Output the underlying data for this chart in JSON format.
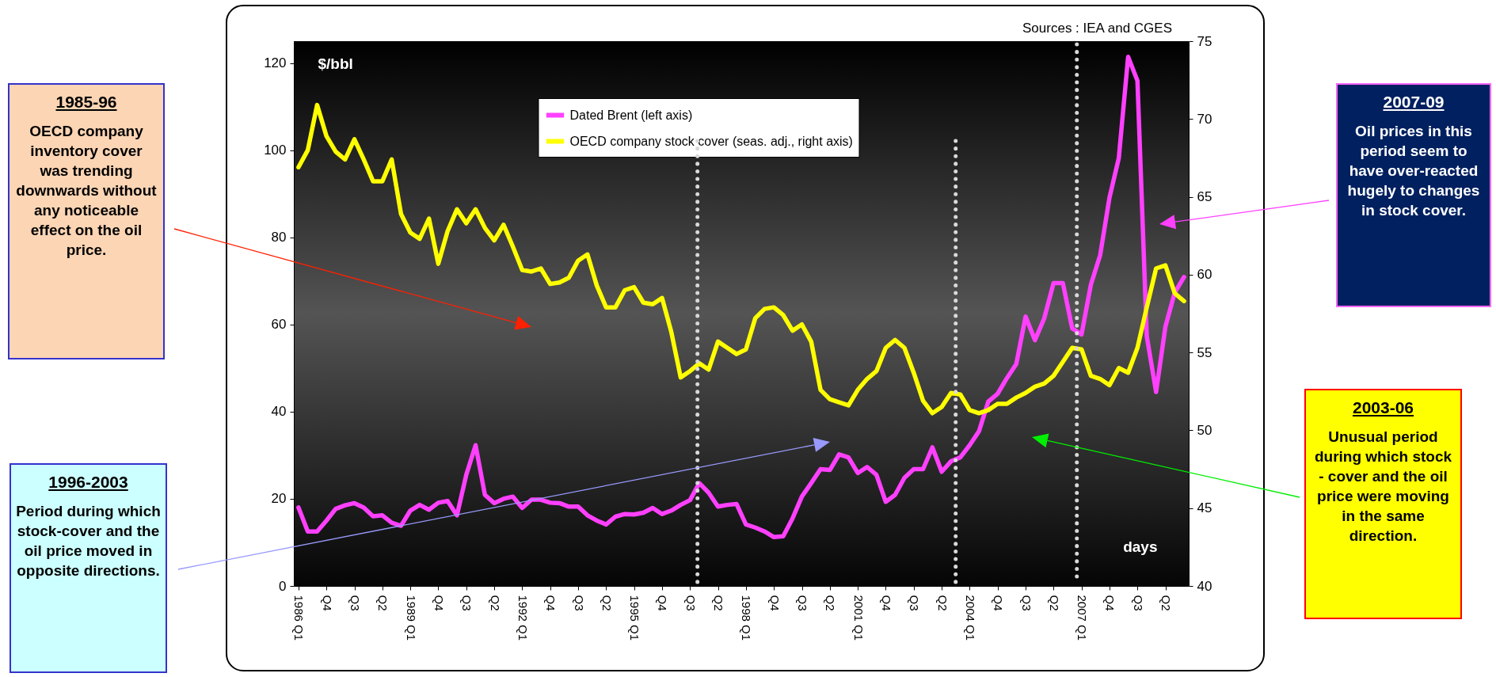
{
  "chart_data": {
    "type": "line",
    "ylabel": "$/bbl",
    "y2label": "days",
    "legend": "top",
    "categories": [
      "1986 Q1",
      null,
      null,
      "Q4",
      null,
      null,
      "Q3",
      null,
      null,
      "Q2",
      null,
      null,
      "1989 Q1",
      null,
      null,
      "Q4",
      null,
      null,
      "Q3",
      null,
      null,
      "Q2",
      null,
      null,
      "1992 Q1",
      null,
      null,
      "Q4",
      null,
      null,
      "Q3",
      null,
      null,
      "Q2",
      null,
      null,
      "1995 Q1",
      null,
      null,
      "Q4",
      null,
      null,
      "Q3",
      null,
      null,
      "Q2",
      null,
      null,
      "1998 Q1",
      null,
      null,
      "Q4",
      null,
      null,
      "Q3",
      null,
      null,
      "Q2",
      null,
      null,
      "2001 Q1",
      null,
      null,
      "Q4",
      null,
      null,
      "Q3",
      null,
      null,
      "Q2",
      null,
      null,
      "2004 Q1",
      null,
      null,
      "Q4",
      null,
      null,
      "Q3",
      null,
      null,
      "Q2",
      null,
      null,
      "2007 Q1",
      null,
      null,
      "Q4",
      null,
      null,
      "Q3",
      null,
      null,
      "Q2",
      null,
      null
    ],
    "series": [
      {
        "name": "Dated Brent (left axis)",
        "color": "#ff40ff",
        "values": [
          18,
          12.5,
          12.5,
          15,
          17.7,
          18.5,
          19,
          18,
          16,
          16.2,
          14.5,
          13.8,
          17.3,
          18.6,
          17.5,
          19.1,
          19.5,
          16.2,
          25.5,
          32.3,
          20.9,
          19,
          20,
          20.5,
          17.9,
          19.8,
          19.8,
          19.1,
          19,
          18.2,
          18.2,
          16.2,
          15,
          14.1,
          15.9,
          16.5,
          16.4,
          16.8,
          17.9,
          16.5,
          17.3,
          18.6,
          19.7,
          23.6,
          21.4,
          18.2,
          18.6,
          18.8,
          14.1,
          13.4,
          12.5,
          11.2,
          11.4,
          15.5,
          20.5,
          23.6,
          26.8,
          26.6,
          30.2,
          29.5,
          25.9,
          27.3,
          25.5,
          19.3,
          20.9,
          24.8,
          26.8,
          26.8,
          31.8,
          26.2,
          28.6,
          29.5,
          32.3,
          35.5,
          42.3,
          44.1,
          47.7,
          50.9,
          61.8,
          56.4,
          61.4,
          69.5,
          69.5,
          59.1,
          57.7,
          69.1,
          75.9,
          89.1,
          98.2,
          121.4,
          115.9,
          57.3,
          44.5,
          59.5,
          67.3,
          70.9
        ]
      },
      {
        "name": "OECD company stock cover (seas. adj., right axis)",
        "color": "#ffff00",
        "axis": "y2",
        "values": [
          66.9,
          68,
          70.9,
          68.9,
          67.9,
          67.4,
          68.7,
          67.4,
          66,
          66,
          67.4,
          63.9,
          62.7,
          62.3,
          63.6,
          60.7,
          62.8,
          64.2,
          63.3,
          64.2,
          63,
          62.2,
          63.2,
          61.8,
          60.3,
          60.2,
          60.4,
          59.4,
          59.5,
          59.8,
          60.9,
          61.3,
          59.3,
          57.9,
          57.9,
          59,
          59.2,
          58.2,
          58.1,
          58.5,
          56.3,
          53.4,
          53.8,
          54.3,
          53.9,
          55.7,
          55.3,
          54.9,
          55.2,
          57.2,
          57.8,
          57.9,
          57.4,
          56.4,
          56.8,
          55.7,
          52.6,
          52,
          51.8,
          51.6,
          52.6,
          53.3,
          53.8,
          55.3,
          55.8,
          55.3,
          53.7,
          51.9,
          51.1,
          51.5,
          52.4,
          52.3,
          51.3,
          51.1,
          51.3,
          51.7,
          51.7,
          52.1,
          52.4,
          52.8,
          53,
          53.5,
          54.4,
          55.3,
          55.2,
          53.5,
          53.3,
          52.9,
          54,
          53.7,
          55.3,
          57.9,
          60.4,
          60.6,
          58.8,
          58.3
        ]
      }
    ],
    "ylim": [
      0,
      125
    ],
    "yticks": [
      0,
      20,
      40,
      60,
      80,
      100,
      120
    ],
    "y2lim": [
      40,
      75
    ],
    "y2ticks": [
      40,
      45,
      50,
      55,
      60,
      65,
      70,
      75
    ],
    "annotations": [
      "Sources : IEA and CGES",
      "1985-96",
      "OECD company inventory cover was trending downwards without any noticeable effect on the oil price.",
      "1996-2003",
      "Period during which stock-cover and the oil price moved in opposite directions.",
      "2007-09",
      "Oil prices in this period seem to have over-reacted hugely to changes in stock cover.",
      "2003-06",
      "Unusual period during which stock - cover and the oil price were moving in the same direction."
    ]
  }
}
